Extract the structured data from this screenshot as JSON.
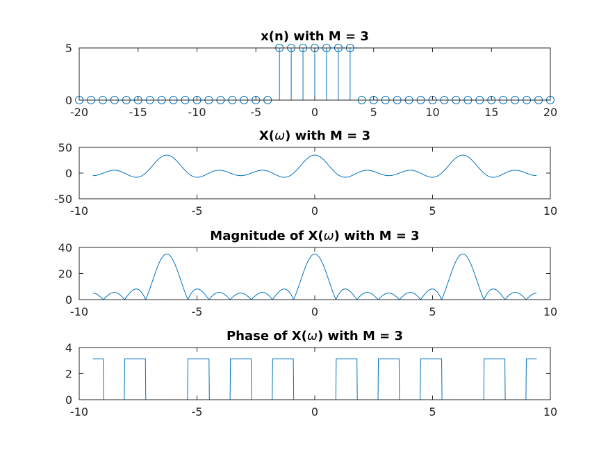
{
  "colors": {
    "series": "#0072BD",
    "axis": "#262626",
    "background": "#ffffff"
  },
  "chart_data": [
    {
      "type": "stem",
      "title": "x(n) with M = 3",
      "xlim": [
        -20,
        20
      ],
      "ylim": [
        0,
        5
      ],
      "xticks": [
        -20,
        -15,
        -10,
        -5,
        0,
        5,
        10,
        15,
        20
      ],
      "yticks": [
        0,
        5
      ],
      "xtick_labels": [
        "-20",
        "-15",
        "-10",
        "-5",
        "0",
        "5",
        "10",
        "15",
        "20"
      ],
      "ytick_labels": [
        "0",
        "5"
      ],
      "x": [
        -20,
        -19,
        -18,
        -17,
        -16,
        -15,
        -14,
        -13,
        -12,
        -11,
        -10,
        -9,
        -8,
        -7,
        -6,
        -5,
        -4,
        -3,
        -2,
        -1,
        0,
        1,
        2,
        3,
        4,
        5,
        6,
        7,
        8,
        9,
        10,
        11,
        12,
        13,
        14,
        15,
        16,
        17,
        18,
        19,
        20
      ],
      "values": [
        0,
        0,
        0,
        0,
        0,
        0,
        0,
        0,
        0,
        0,
        0,
        0,
        0,
        0,
        0,
        0,
        0,
        5,
        5,
        5,
        5,
        5,
        5,
        5,
        0,
        0,
        0,
        0,
        0,
        0,
        0,
        0,
        0,
        0,
        0,
        0,
        0,
        0,
        0,
        0,
        0
      ],
      "grid": false
    },
    {
      "type": "line",
      "title": "X(ω) with M = 3",
      "xlim": [
        -10,
        10
      ],
      "ylim": [
        -50,
        50
      ],
      "xticks": [
        -10,
        -5,
        0,
        5,
        10
      ],
      "yticks": [
        -50,
        0,
        50
      ],
      "xtick_labels": [
        "-10",
        "-5",
        "0",
        "5",
        "10"
      ],
      "ytick_labels": [
        "-50",
        "0",
        "50"
      ],
      "x_range": [
        -9.42,
        9.42
      ],
      "function": "sum_{n=-3}^{3} 5 cos(n ω)",
      "peak_values": [
        {
          "x": -6.28,
          "y": 35
        },
        {
          "x": 0,
          "y": 35
        },
        {
          "x": 6.28,
          "y": 35
        }
      ],
      "grid": false
    },
    {
      "type": "line",
      "title": "Magnitude of X(ω) with M = 3",
      "xlim": [
        -10,
        10
      ],
      "ylim": [
        0,
        40
      ],
      "xticks": [
        -10,
        -5,
        0,
        5,
        10
      ],
      "yticks": [
        0,
        20,
        40
      ],
      "xtick_labels": [
        "-10",
        "-5",
        "0",
        "5",
        "10"
      ],
      "ytick_labels": [
        "0",
        "20",
        "40"
      ],
      "x_range": [
        -9.42,
        9.42
      ],
      "function": "|X(ω)|",
      "peak_values": [
        {
          "x": -6.28,
          "y": 35
        },
        {
          "x": 0,
          "y": 35
        },
        {
          "x": 6.28,
          "y": 35
        }
      ],
      "grid": false
    },
    {
      "type": "line",
      "title": "Phase of X(ω) with M = 3",
      "xlim": [
        -10,
        10
      ],
      "ylim": [
        0,
        4
      ],
      "xticks": [
        -10,
        -5,
        0,
        5,
        10
      ],
      "yticks": [
        0,
        2,
        4
      ],
      "xtick_labels": [
        "-10",
        "-5",
        "0",
        "5",
        "10"
      ],
      "ytick_labels": [
        "0",
        "2",
        "4"
      ],
      "x_range": [
        -9.42,
        9.42
      ],
      "function": "angle(X(ω)) — 0 or π",
      "levels": [
        0,
        3.1416
      ],
      "grid": false
    }
  ]
}
